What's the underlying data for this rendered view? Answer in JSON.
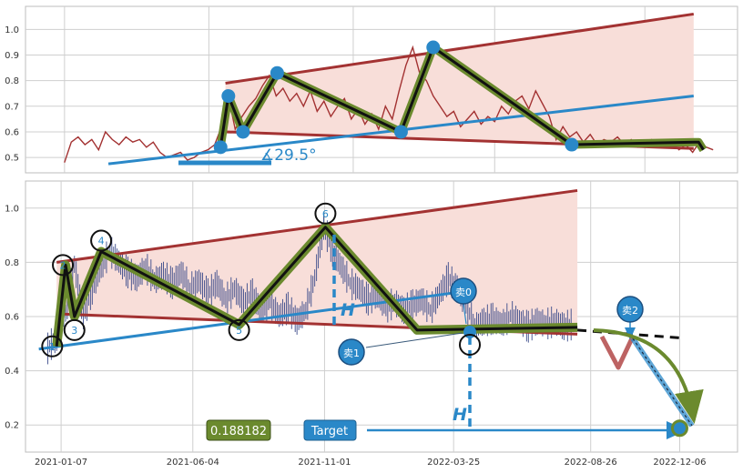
{
  "colors": {
    "grid": "#cfcfcf",
    "axis_frame": "#bdbdbd",
    "top_price": "#a33232",
    "channel_red": "#a33232",
    "channel_fill": "#f8ded9",
    "blue": "#2a88c8",
    "zigzag_outer": "#6b8a2e",
    "zigzag_inner": "#111111",
    "candle": "#3a4a8a",
    "tag_green": "#6b8a2e",
    "tag_blue": "#2a88c8"
  },
  "chart_data": [
    {
      "type": "line",
      "panel": "top",
      "ylim": [
        0.44,
        1.09
      ],
      "yticks": [
        "0.5",
        "0.6",
        "0.7",
        "0.8",
        "0.9",
        "1.0"
      ],
      "ytick_values": [
        0.5,
        0.6,
        0.7,
        0.8,
        0.9,
        1.0
      ],
      "xrange_days": [
        -40,
        690
      ],
      "grid": true,
      "series": [
        {
          "values_desc": "price",
          "x": [
            0,
            7,
            14,
            21,
            28,
            35,
            42,
            49,
            56,
            63,
            70,
            77,
            84,
            91,
            98,
            105,
            112,
            119,
            126,
            133,
            140,
            147,
            154,
            161,
            168,
            175,
            182,
            189,
            196,
            203,
            210,
            217,
            224,
            231,
            238,
            245,
            252,
            259,
            266,
            273,
            280,
            287,
            294,
            301,
            308,
            315,
            322,
            329,
            336,
            343,
            350,
            357,
            364,
            371,
            378,
            385,
            392,
            399,
            406,
            413,
            420,
            427,
            434,
            441,
            448,
            455,
            462,
            469,
            476,
            483,
            490,
            497,
            504,
            511,
            518,
            525,
            532,
            539,
            546,
            553,
            560,
            567,
            574,
            581,
            588,
            595,
            602,
            609,
            616,
            623,
            630,
            637,
            644,
            651,
            658,
            665
          ],
          "y": [
            0.48,
            0.56,
            0.58,
            0.55,
            0.57,
            0.53,
            0.6,
            0.57,
            0.55,
            0.58,
            0.56,
            0.57,
            0.54,
            0.56,
            0.52,
            0.5,
            0.51,
            0.52,
            0.49,
            0.5,
            0.52,
            0.53,
            0.55,
            0.62,
            0.74,
            0.61,
            0.66,
            0.7,
            0.73,
            0.78,
            0.82,
            0.74,
            0.77,
            0.72,
            0.75,
            0.7,
            0.76,
            0.68,
            0.72,
            0.66,
            0.7,
            0.73,
            0.65,
            0.69,
            0.63,
            0.67,
            0.61,
            0.7,
            0.65,
            0.76,
            0.86,
            0.93,
            0.83,
            0.8,
            0.74,
            0.7,
            0.66,
            0.68,
            0.62,
            0.65,
            0.68,
            0.63,
            0.66,
            0.64,
            0.7,
            0.67,
            0.72,
            0.74,
            0.69,
            0.76,
            0.71,
            0.66,
            0.57,
            0.62,
            0.58,
            0.6,
            0.56,
            0.59,
            0.55,
            0.57,
            0.56,
            0.58,
            0.55,
            0.57,
            0.54,
            0.56,
            0.57,
            0.55,
            0.54,
            0.56,
            0.53,
            0.55,
            0.52,
            0.56,
            0.54,
            0.53
          ]
        }
      ],
      "channel_upper": [
        [
          165,
          0.79
        ],
        [
          645,
          1.06
        ]
      ],
      "channel_lower": [
        [
          165,
          0.6
        ],
        [
          645,
          0.535
        ]
      ],
      "trend_blue": [
        [
          45,
          0.475
        ],
        [
          645,
          0.74
        ]
      ],
      "zigzag": [
        [
          160,
          0.54
        ],
        [
          168,
          0.74
        ],
        [
          183,
          0.6
        ],
        [
          218,
          0.83
        ],
        [
          345,
          0.6
        ],
        [
          378,
          0.93
        ],
        [
          520,
          0.55
        ],
        [
          650,
          0.56
        ],
        [
          655,
          0.53
        ]
      ],
      "pivot_points": [
        [
          160,
          0.54
        ],
        [
          168,
          0.74
        ],
        [
          183,
          0.6
        ],
        [
          218,
          0.83
        ],
        [
          345,
          0.6
        ],
        [
          378,
          0.93
        ],
        [
          520,
          0.55
        ]
      ],
      "angle_label": "∡29.5°"
    },
    {
      "type": "line",
      "panel": "bottom",
      "ylim": [
        0.1,
        1.1
      ],
      "yticks": [
        "0.2",
        "0.4",
        "0.6",
        "0.8",
        "1.0"
      ],
      "ytick_values": [
        0.2,
        0.4,
        0.6,
        0.8,
        1.0
      ],
      "xticks": [
        "2021-01-07",
        "2021-06-04",
        "2021-11-01",
        "2022-03-25",
        "2022-08-26",
        "2022-12-06"
      ],
      "xtick_values": [
        0,
        148,
        296,
        441,
        595,
        695
      ],
      "xrange_days": [
        -40,
        760
      ],
      "grid": true,
      "series": [
        {
          "values_desc": "price_candles",
          "x": [
            -15,
            -5,
            5,
            15,
            25,
            35,
            45,
            55,
            65,
            75,
            85,
            95,
            105,
            115,
            125,
            135,
            145,
            155,
            165,
            175,
            185,
            195,
            205,
            215,
            225,
            235,
            245,
            255,
            265,
            275,
            285,
            295,
            305,
            315,
            325,
            335,
            345,
            355,
            365,
            375,
            385,
            395,
            405,
            415,
            425,
            435,
            445,
            455,
            465,
            475,
            485,
            495,
            505,
            515,
            525,
            535,
            545,
            555,
            565,
            575
          ],
          "y": [
            0.48,
            0.52,
            0.61,
            0.79,
            0.6,
            0.7,
            0.78,
            0.84,
            0.8,
            0.76,
            0.74,
            0.78,
            0.73,
            0.75,
            0.72,
            0.76,
            0.7,
            0.73,
            0.68,
            0.72,
            0.66,
            0.7,
            0.65,
            0.68,
            0.62,
            0.65,
            0.6,
            0.63,
            0.58,
            0.62,
            0.74,
            0.93,
            0.84,
            0.78,
            0.72,
            0.7,
            0.66,
            0.68,
            0.63,
            0.65,
            0.62,
            0.64,
            0.66,
            0.62,
            0.68,
            0.74,
            0.7,
            0.64,
            0.56,
            0.58,
            0.59,
            0.57,
            0.6,
            0.58,
            0.56,
            0.58,
            0.57,
            0.58,
            0.56,
            0.57
          ]
        }
      ],
      "channel_upper": [
        [
          -5,
          0.8
        ],
        [
          580,
          1.065
        ]
      ],
      "channel_lower": [
        [
          -5,
          0.61
        ],
        [
          580,
          0.535
        ]
      ],
      "trend_blue": [
        [
          -25,
          0.48
        ],
        [
          447,
          0.69
        ]
      ],
      "zigzag": [
        [
          -5,
          0.49
        ],
        [
          5,
          0.79
        ],
        [
          15,
          0.6
        ],
        [
          45,
          0.84
        ],
        [
          200,
          0.57
        ],
        [
          297,
          0.93
        ],
        [
          400,
          0.55
        ],
        [
          580,
          0.56
        ]
      ],
      "pivot_labels": [
        "1",
        "2",
        "3",
        "4",
        "5",
        "6"
      ],
      "pivot_points": [
        [
          -10,
          0.49
        ],
        [
          2,
          0.79
        ],
        [
          15,
          0.55
        ],
        [
          45,
          0.88
        ],
        [
          200,
          0.55
        ],
        [
          297,
          0.98
        ]
      ],
      "h_label": "H",
      "tags": {
        "value_label": "0.188182",
        "target_label": "Target"
      },
      "sell_labels": [
        "卖0",
        "卖1",
        "卖2"
      ],
      "target_point": [
        695,
        0.188
      ],
      "dashed_projection": [
        [
          580,
          0.55
        ],
        [
          700,
          0.52
        ]
      ]
    }
  ]
}
